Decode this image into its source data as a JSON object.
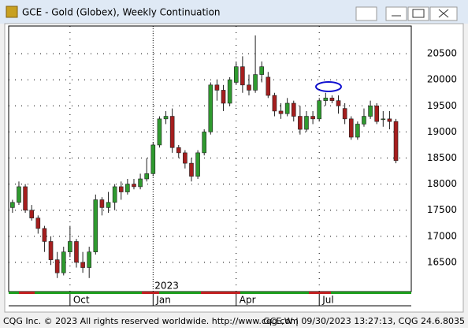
{
  "window_title": "GCE - Gold (Globex), Weekly Continuation",
  "status_left": "CQG Inc. © 2023 All rights reserved worldwide. http://www.cqg.com",
  "status_right": "GCE,W | 09/30/2023 13:27:13, CQG 24.6.8035",
  "chart_data": {
    "type": "candlestick",
    "year_label": "2023",
    "open": [
      17550,
      17650,
      17950,
      17500,
      17350,
      17150,
      16900,
      16550,
      16300,
      16700,
      16900,
      16500,
      16400,
      16700,
      17700,
      17550,
      17650,
      17950,
      17850,
      18000,
      17950,
      18100,
      18200,
      18750,
      19250,
      19300,
      18700,
      18600,
      18400,
      18150,
      18600,
      19000,
      19900,
      19800,
      19550,
      19950,
      20250,
      19900,
      19800,
      20100,
      20050,
      19700,
      19400,
      19350,
      19550,
      19300,
      19050,
      19300,
      19250,
      19600,
      19650,
      19600,
      19450,
      19250,
      18900,
      19150,
      19300,
      19500,
      19250,
      19250,
      19200
    ],
    "high": [
      17700,
      18050,
      18000,
      17600,
      17400,
      17200,
      17000,
      16700,
      16800,
      17200,
      16950,
      16700,
      16800,
      17800,
      17750,
      17850,
      18000,
      18050,
      18100,
      18100,
      18200,
      18500,
      18800,
      19300,
      19400,
      19450,
      18750,
      18650,
      18500,
      18650,
      19050,
      19950,
      20000,
      19900,
      20050,
      20350,
      20450,
      20100,
      20850,
      20350,
      20150,
      19750,
      19550,
      19650,
      19600,
      19500,
      19400,
      19400,
      19650,
      19750,
      19700,
      19700,
      19550,
      19300,
      19200,
      19450,
      19600,
      19550,
      19400,
      19400,
      19250
    ],
    "low": [
      17450,
      17600,
      17450,
      17300,
      17050,
      16700,
      16450,
      16200,
      16250,
      16600,
      16400,
      16300,
      16200,
      16650,
      17400,
      17450,
      17500,
      17700,
      17800,
      17900,
      17900,
      18050,
      18150,
      18700,
      19150,
      18600,
      18500,
      18300,
      18050,
      18100,
      18550,
      18950,
      19600,
      19400,
      19500,
      19900,
      19750,
      19700,
      19750,
      19950,
      19650,
      19300,
      19250,
      19300,
      19200,
      18950,
      19000,
      19150,
      19200,
      19500,
      19550,
      19350,
      19150,
      18850,
      18850,
      19100,
      19250,
      19150,
      19100,
      19050,
      18400
    ],
    "close": [
      17650,
      17950,
      17500,
      17350,
      17150,
      16900,
      16550,
      16300,
      16700,
      16900,
      16500,
      16400,
      16700,
      17700,
      17550,
      17650,
      17950,
      17850,
      18000,
      17950,
      18100,
      18200,
      18750,
      19250,
      19300,
      18700,
      18600,
      18400,
      18150,
      18600,
      19000,
      19900,
      19800,
      19550,
      20000,
      20250,
      19900,
      19800,
      20100,
      20250,
      19700,
      19400,
      19350,
      19550,
      19300,
      19050,
      19300,
      19250,
      19600,
      19650,
      19600,
      19500,
      19250,
      18900,
      19150,
      19300,
      19500,
      19200,
      19250,
      19200,
      18450
    ],
    "up_color": "#2f9a2f",
    "down_color": "#a51e1e",
    "ylim": [
      15940,
      21030
    ],
    "yticks": [
      16500,
      17000,
      17500,
      18000,
      18500,
      19000,
      19500,
      20000,
      20500
    ],
    "xlim": [
      -0.6,
      62.4
    ],
    "xticks": [
      {
        "value": 9,
        "label": "Oct"
      },
      {
        "value": 22,
        "label": "Jan"
      },
      {
        "value": 35,
        "label": "Apr"
      },
      {
        "value": 48,
        "label": "Jul"
      }
    ],
    "grid": true
  }
}
